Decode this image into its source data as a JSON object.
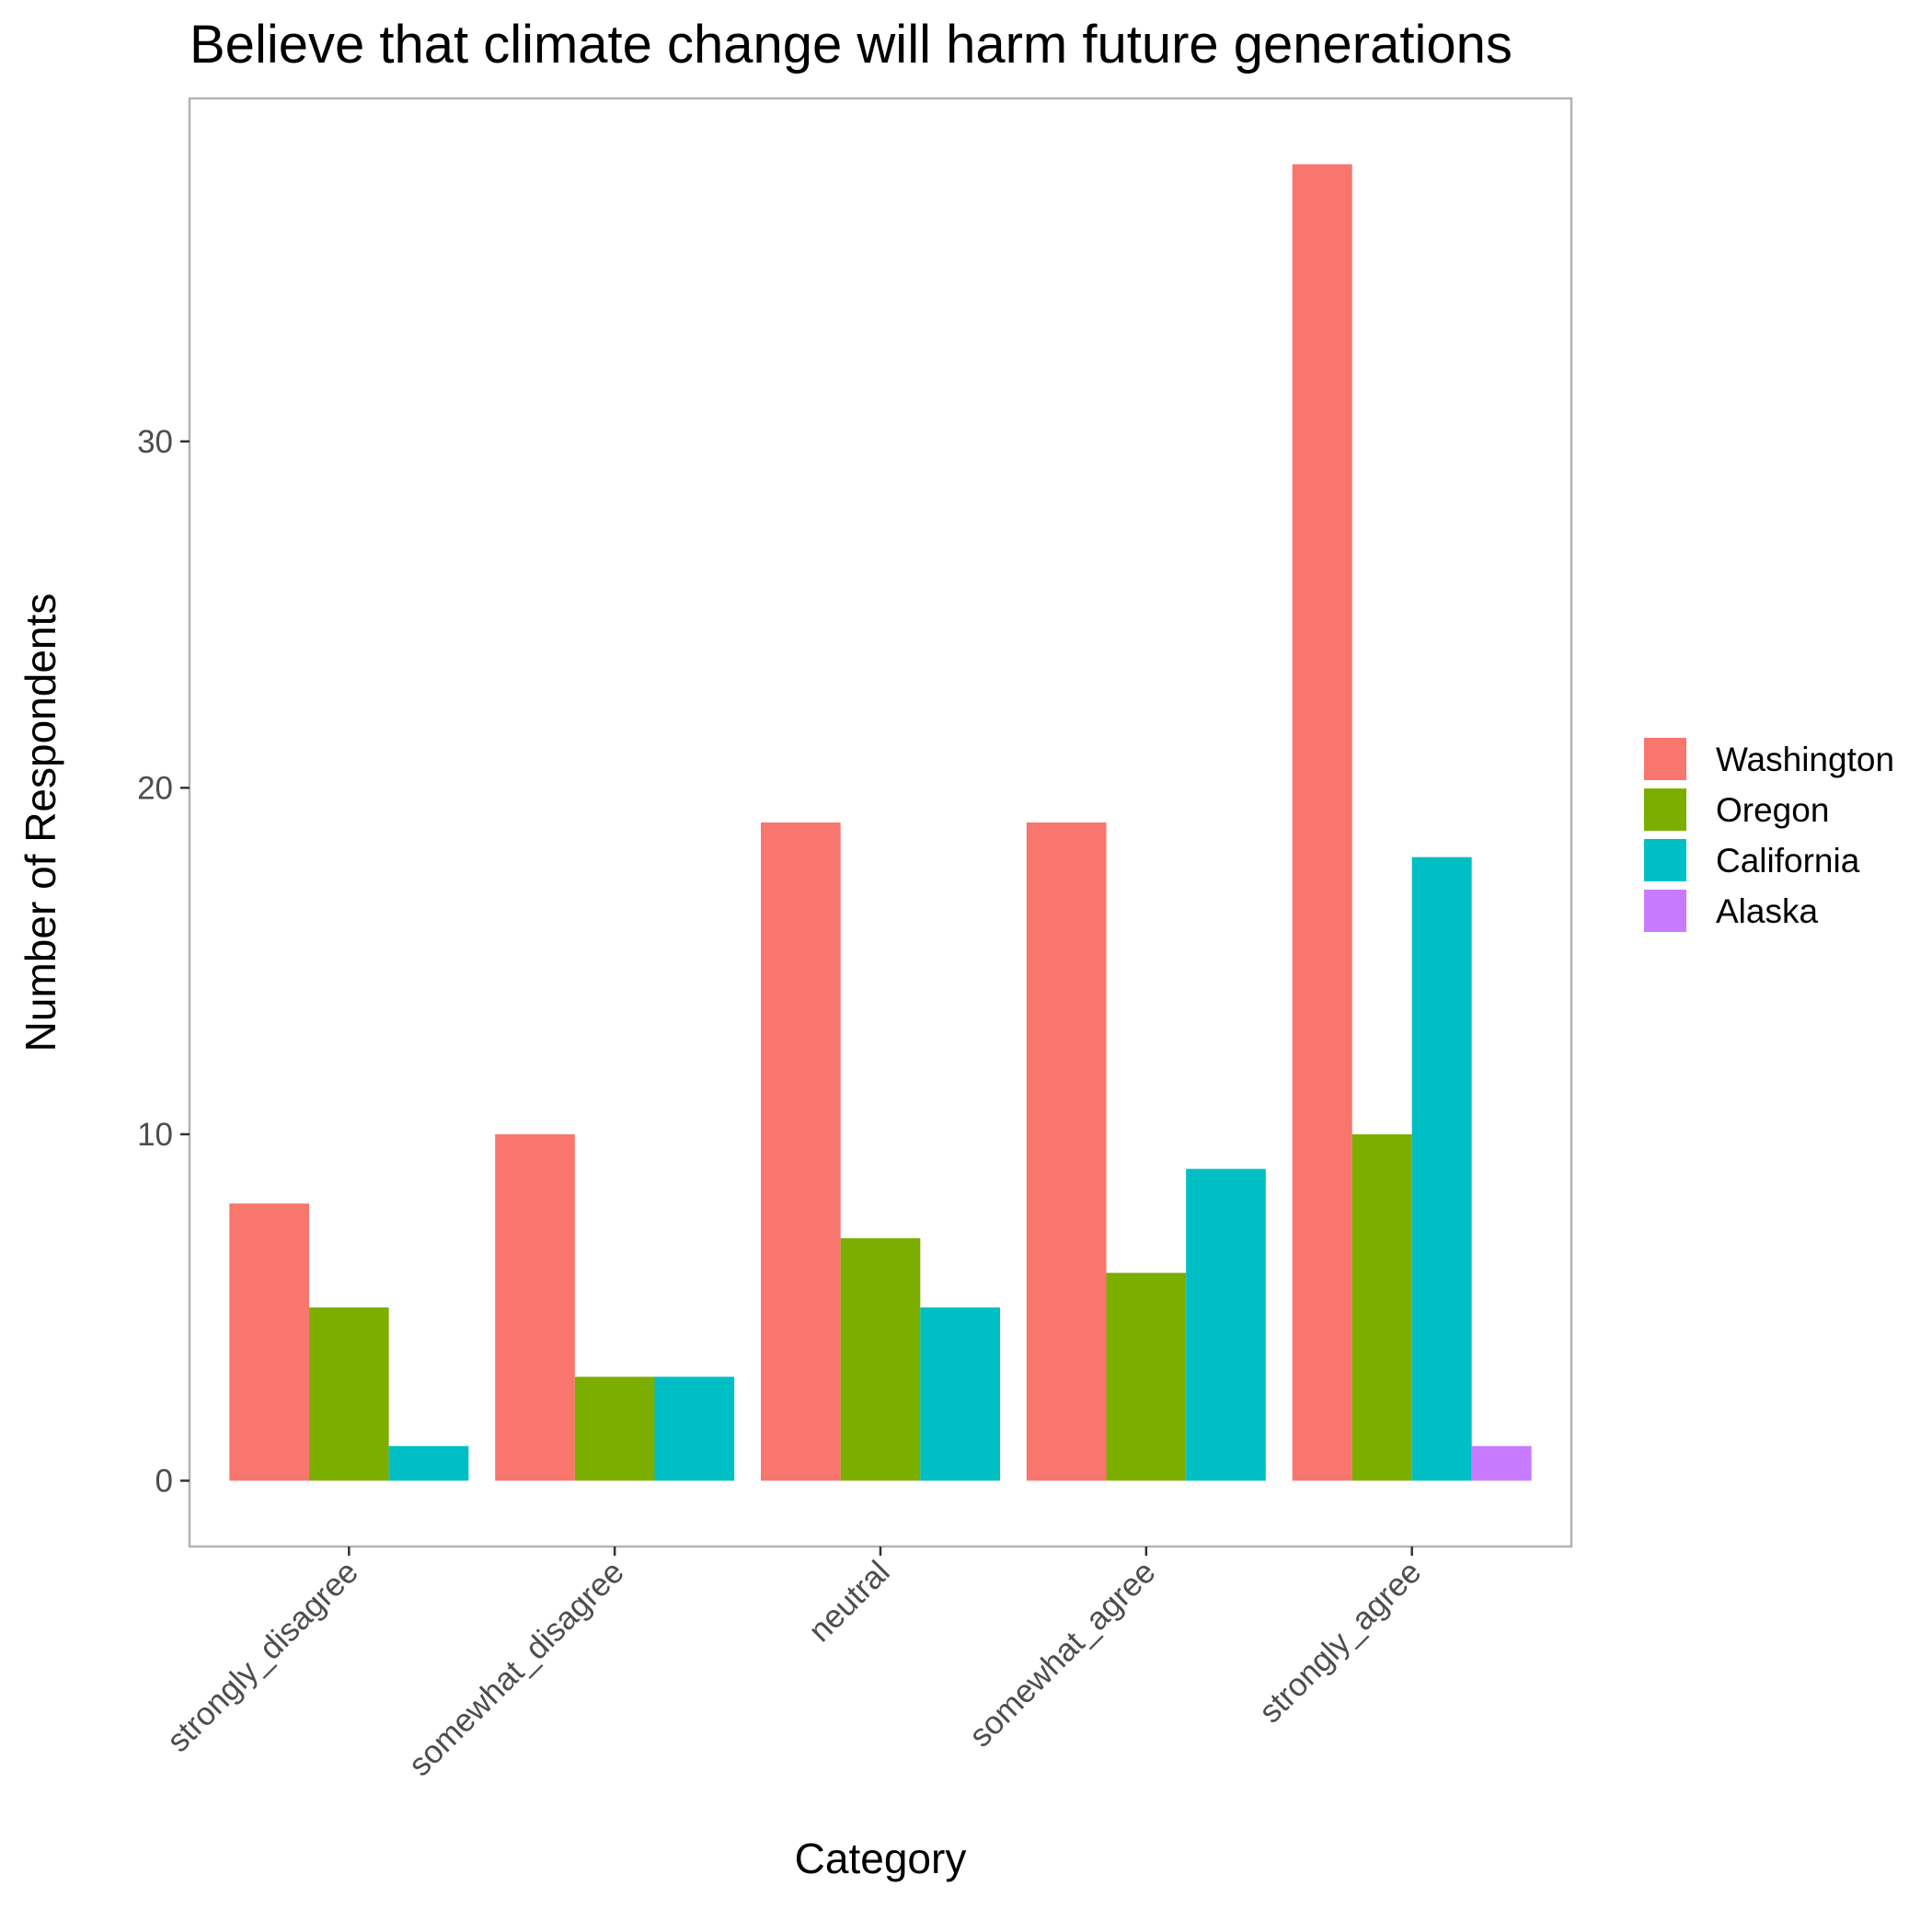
{
  "chart_data": {
    "type": "bar",
    "title": "Believe that climate change will harm future generations",
    "xlabel": "Category",
    "ylabel": "Number of Respondents",
    "categories": [
      "strongly_disagree",
      "somewhat_disagree",
      "neutral",
      "somewhat_agree",
      "strongly_agree"
    ],
    "series": [
      {
        "name": "Washington",
        "color": "#F8766D",
        "values": [
          8,
          10,
          19,
          19,
          38
        ]
      },
      {
        "name": "Oregon",
        "color": "#7CAE00",
        "values": [
          5,
          3,
          7,
          6,
          10
        ]
      },
      {
        "name": "California",
        "color": "#00BFC4",
        "values": [
          1,
          3,
          5,
          9,
          18
        ]
      },
      {
        "name": "Alaska",
        "color": "#C77CFF",
        "values": [
          0,
          0,
          0,
          0,
          1
        ]
      }
    ],
    "ylim": [
      -1.9,
      39.9
    ],
    "yticks": [
      0,
      10,
      20,
      30
    ],
    "grid": false,
    "legend_position": "right",
    "x_tick_rotation": 45
  }
}
